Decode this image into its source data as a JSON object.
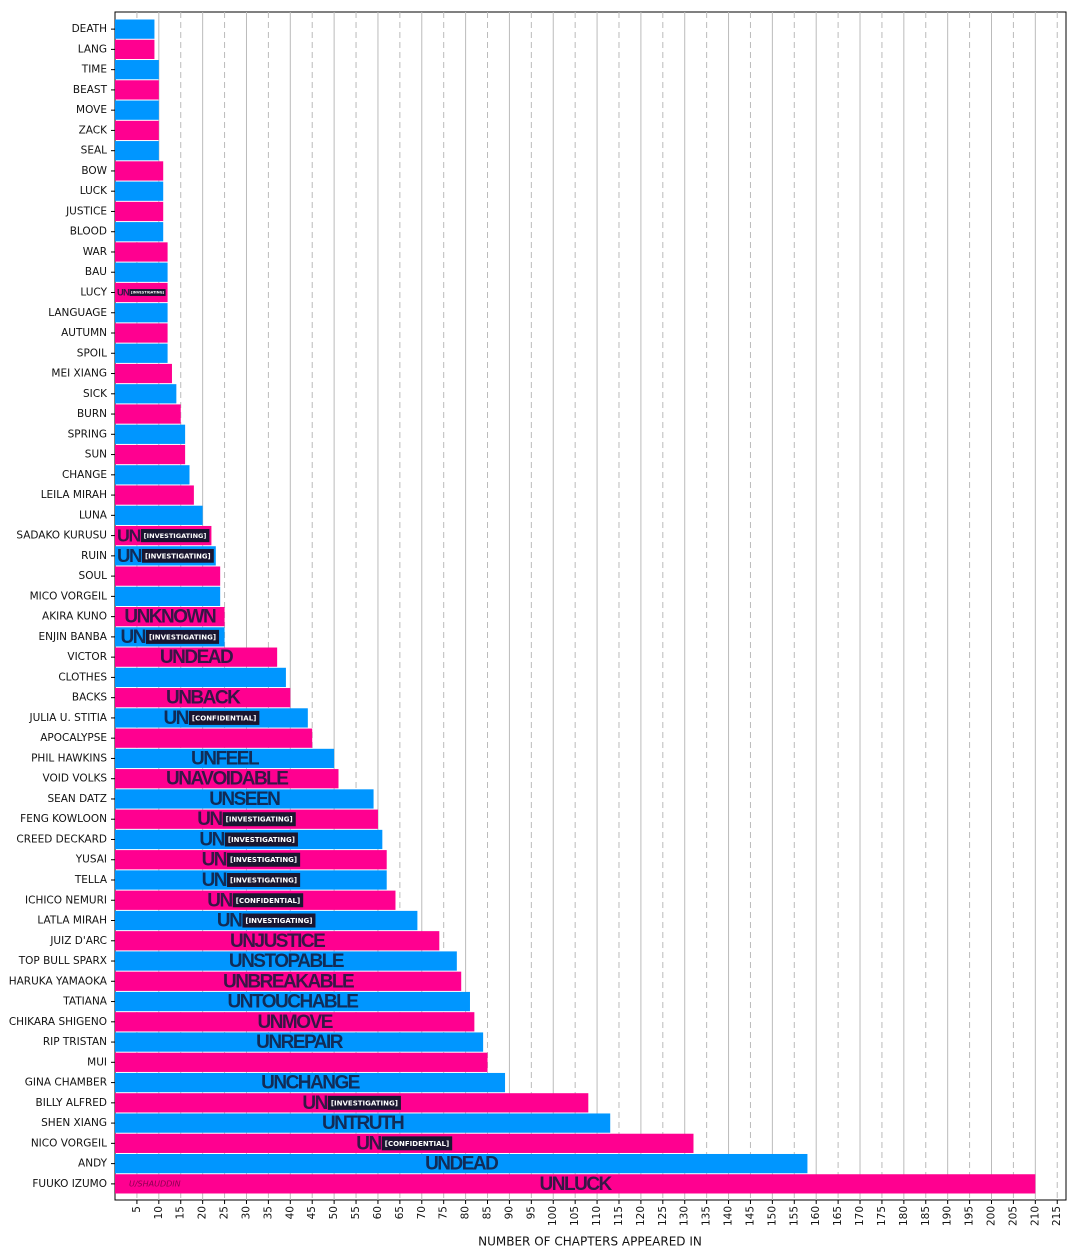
{
  "chart_data": {
    "type": "barh",
    "xlabel": "NUMBER OF CHAPTERS APPEARED IN",
    "credit": "U/SHAUDDIN",
    "colors": [
      "#0096ff",
      "#ff0090"
    ],
    "grid": true,
    "xlim": [
      0,
      217
    ],
    "xticks": [
      5,
      10,
      15,
      20,
      25,
      30,
      35,
      40,
      45,
      50,
      55,
      60,
      65,
      70,
      75,
      80,
      85,
      90,
      95,
      100,
      105,
      110,
      115,
      120,
      125,
      130,
      135,
      140,
      145,
      150,
      155,
      160,
      165,
      170,
      175,
      180,
      185,
      190,
      195,
      200,
      205,
      210,
      215
    ],
    "categories": [
      "DEATH",
      "LANG",
      "TIME",
      "BEAST",
      "MOVE",
      "ZACK",
      "SEAL",
      "BOW",
      "LUCK",
      "JUSTICE",
      "BLOOD",
      "WAR",
      "BAU",
      "LUCY",
      "LANGUAGE",
      "AUTUMN",
      "SPOIL",
      "MEI XIANG",
      "SICK",
      "BURN",
      "SPRING",
      "SUN",
      "CHANGE",
      "LEILA MIRAH",
      "LUNA",
      "SADAKO KURUSU",
      "RUIN",
      "SOUL",
      "MICO VORGEIL",
      "AKIRA KUNO",
      "ENJIN BANBA",
      "VICTOR",
      "CLOTHES",
      "BACKS",
      "JULIA U. STITIA",
      "APOCALYPSE",
      "PHIL HAWKINS",
      "VOID VOLKS",
      "SEAN DATZ",
      "FENG KOWLOON",
      "CREED DECKARD",
      "YUSAI",
      "TELLA",
      "ICHICO NEMURI",
      "LATLA MIRAH",
      "JUIZ D'ARC",
      "TOP BULL SPARX",
      "HARUKA YAMAOKA",
      "TATIANA",
      "CHIKARA SHIGENO",
      "RIP TRISTAN",
      "MUI",
      "GINA CHAMBER",
      "BILLY ALFRED",
      "SHEN XIANG",
      "NICO VORGEIL",
      "ANDY",
      "FUUKO IZUMO"
    ],
    "values": [
      9,
      9,
      10,
      10,
      10,
      10,
      10,
      11,
      11,
      11,
      11,
      12,
      12,
      12,
      12,
      12,
      12,
      13,
      14,
      15,
      16,
      16,
      17,
      18,
      20,
      22,
      23,
      24,
      24,
      25,
      25,
      37,
      39,
      40,
      44,
      45,
      50,
      51,
      59,
      60,
      61,
      62,
      62,
      64,
      69,
      74,
      78,
      79,
      81,
      82,
      84,
      85,
      89,
      108,
      113,
      132,
      158,
      210
    ],
    "abilities": [
      null,
      null,
      null,
      null,
      null,
      null,
      null,
      null,
      null,
      null,
      null,
      null,
      null,
      "UN",
      null,
      null,
      null,
      null,
      null,
      null,
      null,
      null,
      null,
      null,
      null,
      "UN",
      "UN",
      null,
      null,
      "UNKNOWN",
      "UN",
      "UNDEAD",
      null,
      "UNBACK",
      "UN",
      null,
      "UNFEEL",
      "UNAVOIDABLE",
      "UNSEEN",
      "UN",
      "UN",
      "UN",
      "UN",
      "UN",
      "UN",
      "UNJUSTICE",
      "UNSTOPABLE",
      "UNBREAKABLE",
      "UNTOUCHABLE",
      "UNMOVE",
      "UNREPAIR",
      null,
      "UNCHANGE",
      "UN",
      "UNTRUTH",
      "UN",
      "UNDEAD",
      "UNLUCK"
    ],
    "ability_tags": [
      null,
      null,
      null,
      null,
      null,
      null,
      null,
      null,
      null,
      null,
      null,
      null,
      null,
      "[INVESTIGATING]",
      null,
      null,
      null,
      null,
      null,
      null,
      null,
      null,
      null,
      null,
      null,
      "[INVESTIGATING]",
      "[INVESTIGATING]",
      null,
      null,
      null,
      "[INVESTIGATING]",
      null,
      null,
      null,
      "[CONFIDENTIAL]",
      null,
      null,
      null,
      null,
      "[INVESTIGATING]",
      "[INVESTIGATING]",
      "[INVESTIGATING]",
      "[INVESTIGATING]",
      "[CONFIDENTIAL]",
      "[INVESTIGATING]",
      null,
      null,
      null,
      null,
      null,
      null,
      null,
      null,
      "[INVESTIGATING]",
      null,
      "[CONFIDENTIAL]",
      null,
      null
    ]
  }
}
